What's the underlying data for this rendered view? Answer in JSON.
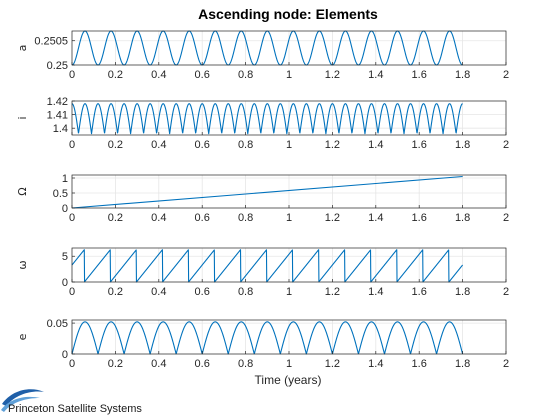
{
  "figure_title": "Ascending node: Elements",
  "x_axis_label": "Time (years)",
  "logo_text": "Princeton Satellite Systems",
  "line_color": "#0072BD",
  "chart_data": [
    {
      "type": "line",
      "ylabel": "a",
      "xlim": [
        0,
        2
      ],
      "ylim": [
        0.25,
        0.2507
      ],
      "xticks": [
        0,
        0.2,
        0.4,
        0.6,
        0.8,
        1,
        1.2,
        1.4,
        1.6,
        1.8,
        2
      ],
      "xticklabels": [
        "0",
        "0.2",
        "0.4",
        "0.6",
        "0.8",
        "1",
        "1.2",
        "1.4",
        "1.6",
        "1.8",
        "2"
      ],
      "yticks": [
        0.25,
        0.2505
      ],
      "yticklabels": [
        "0.25",
        "0.2505"
      ],
      "grid": true,
      "series": [
        {
          "x_range": [
            0,
            1.8
          ],
          "waveform": "sine",
          "cycles": 15,
          "min": 0.25,
          "max": 0.2507,
          "start_phase": "min"
        }
      ]
    },
    {
      "type": "line",
      "ylabel": "i",
      "xlim": [
        0,
        2
      ],
      "ylim": [
        1.395,
        1.42
      ],
      "xticks": [
        0,
        0.2,
        0.4,
        0.6,
        0.8,
        1,
        1.2,
        1.4,
        1.6,
        1.8,
        2
      ],
      "xticklabels": [
        "0",
        "0.2",
        "0.4",
        "0.6",
        "0.8",
        "1",
        "1.2",
        "1.4",
        "1.6",
        "1.8",
        "2"
      ],
      "yticks": [
        1.4,
        1.41,
        1.42
      ],
      "yticklabels": [
        "1.4",
        "1.41",
        "1.42"
      ],
      "grid": true,
      "series": [
        {
          "x_range": [
            0,
            1.8
          ],
          "waveform": "abs-cosine",
          "cycles": 30,
          "min": 1.396,
          "max": 1.418
        }
      ]
    },
    {
      "type": "line",
      "ylabel": "Ω",
      "xlim": [
        0,
        2
      ],
      "ylim": [
        0,
        1.1
      ],
      "xticks": [
        0,
        0.2,
        0.4,
        0.6,
        0.8,
        1,
        1.2,
        1.4,
        1.6,
        1.8,
        2
      ],
      "xticklabels": [
        "0",
        "0.2",
        "0.4",
        "0.6",
        "0.8",
        "1",
        "1.2",
        "1.4",
        "1.6",
        "1.8",
        "2"
      ],
      "yticks": [
        0,
        0.5,
        1
      ],
      "yticklabels": [
        "0",
        "0.5",
        "1"
      ],
      "grid": true,
      "series": [
        {
          "x": [
            0,
            1.8
          ],
          "y": [
            0,
            1.05
          ],
          "waveform": "linear"
        }
      ]
    },
    {
      "type": "line",
      "ylabel": "ω",
      "xlim": [
        0,
        2
      ],
      "ylim": [
        0,
        6.6
      ],
      "xticks": [
        0,
        0.2,
        0.4,
        0.6,
        0.8,
        1,
        1.2,
        1.4,
        1.6,
        1.8,
        2
      ],
      "xticklabels": [
        "0",
        "0.2",
        "0.4",
        "0.6",
        "0.8",
        "1",
        "1.2",
        "1.4",
        "1.6",
        "1.8",
        "2"
      ],
      "yticks": [
        0,
        5
      ],
      "yticklabels": [
        "0",
        "5"
      ],
      "grid": true,
      "series": [
        {
          "x_range": [
            0,
            1.8
          ],
          "waveform": "sawtooth-wrap",
          "cycles": 15,
          "min": 0,
          "max": 6.283,
          "initial_value": 3.3
        }
      ]
    },
    {
      "type": "line",
      "ylabel": "e",
      "xlim": [
        0,
        2
      ],
      "ylim": [
        0,
        0.055
      ],
      "xticks": [
        0,
        0.2,
        0.4,
        0.6,
        0.8,
        1,
        1.2,
        1.4,
        1.6,
        1.8,
        2
      ],
      "xticklabels": [
        "0",
        "0.2",
        "0.4",
        "0.6",
        "0.8",
        "1",
        "1.2",
        "1.4",
        "1.6",
        "1.8",
        "2"
      ],
      "yticks": [
        0,
        0.05
      ],
      "yticklabels": [
        "0",
        "0.05"
      ],
      "grid": true,
      "series": [
        {
          "x_range": [
            0,
            1.8
          ],
          "waveform": "abs-sine",
          "cycles": 15,
          "min": 0,
          "max": 0.052
        }
      ]
    }
  ]
}
